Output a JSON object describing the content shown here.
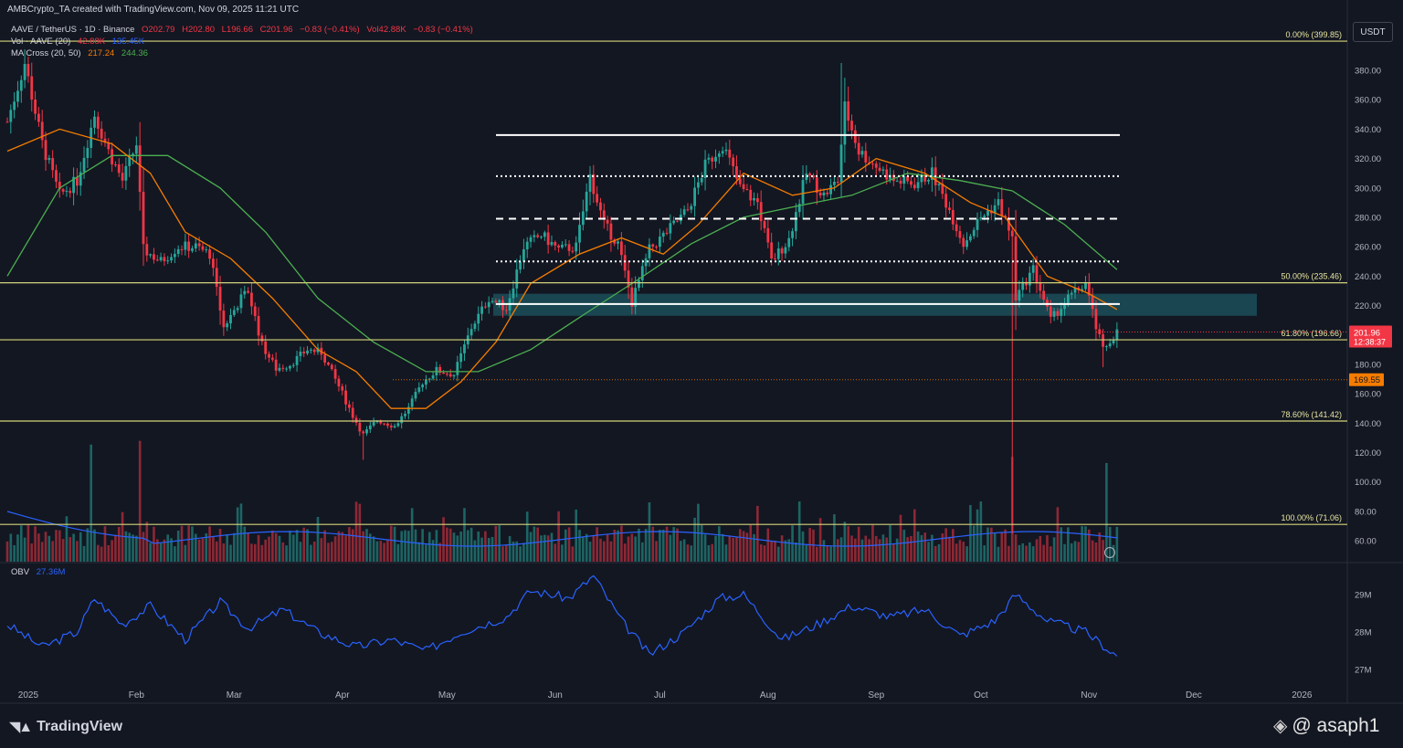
{
  "header": {
    "author_line": "AMBCrypto_TA created with TradingView.com, Nov 09, 2025 11:21 UTC"
  },
  "legend": {
    "symbol": "AAVE / TetherUS · 1D · Binance",
    "open": "O202.79",
    "high": "H202.80",
    "low": "L196.66",
    "close": "C201.96",
    "change": "−0.83 (−0.41%)",
    "volume": "Vol42.88K",
    "volume_change": "−0.83 (−0.41%)",
    "vol_label": "Vol · AAVE (20)",
    "vol_value": "42.88K",
    "vol_ma": "135.45K",
    "ma_label": "MA Cross (20, 50)",
    "ma_fast": "217.24",
    "ma_slow": "244.36",
    "obv_label": "OBV",
    "obv_value": "27.36M"
  },
  "currency_label": "USDT",
  "price_axis": {
    "ticks": [
      "380.00",
      "360.00",
      "340.00",
      "320.00",
      "300.00",
      "280.00",
      "260.00",
      "240.00",
      "220.00",
      "200.00",
      "180.00",
      "160.00",
      "140.00",
      "120.00",
      "100.00",
      "80.00",
      "60.00"
    ],
    "last_price": "201.96",
    "countdown": "12:38:37",
    "marker_price": "169.55"
  },
  "obv_axis": {
    "ticks": [
      "29M",
      "28M",
      "27M"
    ]
  },
  "time_axis": {
    "labels": [
      "2025",
      "Feb",
      "Mar",
      "Apr",
      "May",
      "Jun",
      "Jul",
      "Aug",
      "Sep",
      "Oct",
      "Nov",
      "Dec",
      "2026"
    ]
  },
  "fib_levels": [
    {
      "label": "0.00% (399.85)",
      "price": 399.85
    },
    {
      "label": "50.00% (235.46)",
      "price": 235.46
    },
    {
      "label": "61.80% (196.66)",
      "price": 196.66
    },
    {
      "label": "78.60% (141.42)",
      "price": 141.42
    },
    {
      "label": "100.00% (71.06)",
      "price": 71.06
    }
  ],
  "colors": {
    "up": "#26a69a",
    "down": "#f23645",
    "ma_fast": "#f57c00",
    "ma_slow": "#4caf50",
    "obv": "#2962ff",
    "fib": "#d4d47a",
    "zone": "#1f6d78"
  },
  "footer": {
    "brand": "TradingView",
    "watermark": "@ asaph1"
  },
  "chart_data": {
    "type": "candlestick",
    "title": "AAVE / TetherUS · 1D · Binance",
    "x_range": [
      "2024-12-26",
      "2026-01-14"
    ],
    "y_range": [
      52,
      410
    ],
    "range_lines": [
      336,
      308,
      279,
      250
    ],
    "support_line": 221,
    "demand_zone": [
      213,
      228
    ],
    "reference_price": 169.55,
    "price_path": [
      {
        "date": "2024-12-26",
        "price": 345
      },
      {
        "date": "2024-12-31",
        "price": 385
      },
      {
        "date": "2025-01-05",
        "price": 330
      },
      {
        "date": "2025-01-10",
        "price": 295
      },
      {
        "date": "2025-01-15",
        "price": 305
      },
      {
        "date": "2025-01-20",
        "price": 350
      },
      {
        "date": "2025-01-24",
        "price": 325
      },
      {
        "date": "2025-01-28",
        "price": 305
      },
      {
        "date": "2025-02-01",
        "price": 330
      },
      {
        "date": "2025-02-03",
        "price": 258
      },
      {
        "date": "2025-02-08",
        "price": 250
      },
      {
        "date": "2025-02-13",
        "price": 260
      },
      {
        "date": "2025-02-18",
        "price": 260
      },
      {
        "date": "2025-02-22",
        "price": 255
      },
      {
        "date": "2025-02-26",
        "price": 205
      },
      {
        "date": "2025-03-03",
        "price": 225
      },
      {
        "date": "2025-03-05",
        "price": 230
      },
      {
        "date": "2025-03-09",
        "price": 193
      },
      {
        "date": "2025-03-13",
        "price": 177
      },
      {
        "date": "2025-03-17",
        "price": 180
      },
      {
        "date": "2025-03-22",
        "price": 190
      },
      {
        "date": "2025-03-26",
        "price": 188
      },
      {
        "date": "2025-03-31",
        "price": 165
      },
      {
        "date": "2025-04-04",
        "price": 145
      },
      {
        "date": "2025-04-07",
        "price": 132
      },
      {
        "date": "2025-04-11",
        "price": 142
      },
      {
        "date": "2025-04-16",
        "price": 138
      },
      {
        "date": "2025-04-20",
        "price": 150
      },
      {
        "date": "2025-04-24",
        "price": 168
      },
      {
        "date": "2025-04-28",
        "price": 176
      },
      {
        "date": "2025-05-03",
        "price": 173
      },
      {
        "date": "2025-05-08",
        "price": 205
      },
      {
        "date": "2025-05-13",
        "price": 225
      },
      {
        "date": "2025-05-18",
        "price": 218
      },
      {
        "date": "2025-05-23",
        "price": 260
      },
      {
        "date": "2025-05-28",
        "price": 268
      },
      {
        "date": "2025-06-02",
        "price": 258
      },
      {
        "date": "2025-06-07",
        "price": 260
      },
      {
        "date": "2025-06-11",
        "price": 308
      },
      {
        "date": "2025-06-15",
        "price": 275
      },
      {
        "date": "2025-06-19",
        "price": 262
      },
      {
        "date": "2025-06-23",
        "price": 222
      },
      {
        "date": "2025-06-28",
        "price": 258
      },
      {
        "date": "2025-07-03",
        "price": 270
      },
      {
        "date": "2025-07-09",
        "price": 285
      },
      {
        "date": "2025-07-14",
        "price": 315
      },
      {
        "date": "2025-07-19",
        "price": 330
      },
      {
        "date": "2025-07-24",
        "price": 300
      },
      {
        "date": "2025-07-29",
        "price": 290
      },
      {
        "date": "2025-08-02",
        "price": 250
      },
      {
        "date": "2025-08-07",
        "price": 265
      },
      {
        "date": "2025-08-12",
        "price": 310
      },
      {
        "date": "2025-08-17",
        "price": 295
      },
      {
        "date": "2025-08-21",
        "price": 305
      },
      {
        "date": "2025-08-23",
        "price": 355
      },
      {
        "date": "2025-08-27",
        "price": 325
      },
      {
        "date": "2025-09-01",
        "price": 315
      },
      {
        "date": "2025-09-06",
        "price": 305
      },
      {
        "date": "2025-09-12",
        "price": 303
      },
      {
        "date": "2025-09-17",
        "price": 310
      },
      {
        "date": "2025-09-22",
        "price": 285
      },
      {
        "date": "2025-09-26",
        "price": 262
      },
      {
        "date": "2025-10-01",
        "price": 280
      },
      {
        "date": "2025-10-06",
        "price": 290
      },
      {
        "date": "2025-10-10",
        "price": 265
      },
      {
        "date": "2025-10-11",
        "price": 225
      },
      {
        "date": "2025-10-16",
        "price": 245
      },
      {
        "date": "2025-10-21",
        "price": 210
      },
      {
        "date": "2025-10-26",
        "price": 225
      },
      {
        "date": "2025-10-31",
        "price": 235
      },
      {
        "date": "2025-11-03",
        "price": 205
      },
      {
        "date": "2025-11-05",
        "price": 190
      },
      {
        "date": "2025-11-09",
        "price": 202
      }
    ],
    "extreme_wicks": [
      {
        "date": "2025-08-22",
        "high": 385
      },
      {
        "date": "2025-10-10",
        "low": 65
      },
      {
        "date": "2025-04-07",
        "low": 115
      },
      {
        "date": "2025-11-05",
        "low": 178
      }
    ],
    "ma_fast_path": [
      {
        "date": "2024-12-26",
        "price": 325
      },
      {
        "date": "2025-01-10",
        "price": 340
      },
      {
        "date": "2025-01-25",
        "price": 330
      },
      {
        "date": "2025-02-05",
        "price": 310
      },
      {
        "date": "2025-02-15",
        "price": 270
      },
      {
        "date": "2025-02-28",
        "price": 252
      },
      {
        "date": "2025-03-12",
        "price": 225
      },
      {
        "date": "2025-03-25",
        "price": 190
      },
      {
        "date": "2025-04-05",
        "price": 175
      },
      {
        "date": "2025-04-15",
        "price": 150
      },
      {
        "date": "2025-04-25",
        "price": 150
      },
      {
        "date": "2025-05-05",
        "price": 168
      },
      {
        "date": "2025-05-15",
        "price": 195
      },
      {
        "date": "2025-05-25",
        "price": 235
      },
      {
        "date": "2025-06-08",
        "price": 255
      },
      {
        "date": "2025-06-20",
        "price": 266
      },
      {
        "date": "2025-07-02",
        "price": 255
      },
      {
        "date": "2025-07-12",
        "price": 275
      },
      {
        "date": "2025-07-25",
        "price": 310
      },
      {
        "date": "2025-08-08",
        "price": 295
      },
      {
        "date": "2025-08-20",
        "price": 300
      },
      {
        "date": "2025-09-01",
        "price": 320
      },
      {
        "date": "2025-09-15",
        "price": 310
      },
      {
        "date": "2025-09-28",
        "price": 290
      },
      {
        "date": "2025-10-08",
        "price": 280
      },
      {
        "date": "2025-10-20",
        "price": 240
      },
      {
        "date": "2025-11-01",
        "price": 228
      },
      {
        "date": "2025-11-09",
        "price": 217.24
      }
    ],
    "ma_slow_path": [
      {
        "date": "2024-12-26",
        "price": 240
      },
      {
        "date": "2025-01-10",
        "price": 300
      },
      {
        "date": "2025-01-25",
        "price": 322
      },
      {
        "date": "2025-02-10",
        "price": 322
      },
      {
        "date": "2025-02-25",
        "price": 300
      },
      {
        "date": "2025-03-10",
        "price": 270
      },
      {
        "date": "2025-03-25",
        "price": 225
      },
      {
        "date": "2025-04-10",
        "price": 195
      },
      {
        "date": "2025-04-25",
        "price": 175
      },
      {
        "date": "2025-05-10",
        "price": 175
      },
      {
        "date": "2025-05-25",
        "price": 190
      },
      {
        "date": "2025-06-10",
        "price": 215
      },
      {
        "date": "2025-06-25",
        "price": 238
      },
      {
        "date": "2025-07-10",
        "price": 262
      },
      {
        "date": "2025-07-25",
        "price": 280
      },
      {
        "date": "2025-08-10",
        "price": 288
      },
      {
        "date": "2025-08-25",
        "price": 295
      },
      {
        "date": "2025-09-10",
        "price": 310
      },
      {
        "date": "2025-09-25",
        "price": 305
      },
      {
        "date": "2025-10-10",
        "price": 298
      },
      {
        "date": "2025-10-25",
        "price": 275
      },
      {
        "date": "2025-11-09",
        "price": 244.36
      }
    ],
    "obv_path": [
      {
        "date": "2024-12-26",
        "value": 28.2
      },
      {
        "date": "2025-01-05",
        "value": 27.6
      },
      {
        "date": "2025-01-15",
        "value": 28.0
      },
      {
        "date": "2025-01-20",
        "value": 28.9
      },
      {
        "date": "2025-01-28",
        "value": 28.2
      },
      {
        "date": "2025-02-05",
        "value": 28.7
      },
      {
        "date": "2025-02-15",
        "value": 27.8
      },
      {
        "date": "2025-02-25",
        "value": 28.8
      },
      {
        "date": "2025-03-05",
        "value": 28.1
      },
      {
        "date": "2025-03-15",
        "value": 28.6
      },
      {
        "date": "2025-03-25",
        "value": 28.0
      },
      {
        "date": "2025-04-05",
        "value": 27.6
      },
      {
        "date": "2025-04-15",
        "value": 27.8
      },
      {
        "date": "2025-04-25",
        "value": 27.5
      },
      {
        "date": "2025-05-05",
        "value": 28.0
      },
      {
        "date": "2025-05-18",
        "value": 28.4
      },
      {
        "date": "2025-05-25",
        "value": 29.1
      },
      {
        "date": "2025-06-05",
        "value": 28.9
      },
      {
        "date": "2025-06-12",
        "value": 29.5
      },
      {
        "date": "2025-06-20",
        "value": 28.3
      },
      {
        "date": "2025-06-28",
        "value": 27.4
      },
      {
        "date": "2025-07-08",
        "value": 28.0
      },
      {
        "date": "2025-07-18",
        "value": 28.9
      },
      {
        "date": "2025-07-25",
        "value": 29.0
      },
      {
        "date": "2025-08-05",
        "value": 27.8
      },
      {
        "date": "2025-08-15",
        "value": 28.2
      },
      {
        "date": "2025-08-25",
        "value": 28.7
      },
      {
        "date": "2025-09-05",
        "value": 28.4
      },
      {
        "date": "2025-09-15",
        "value": 28.6
      },
      {
        "date": "2025-09-25",
        "value": 27.9
      },
      {
        "date": "2025-10-05",
        "value": 28.3
      },
      {
        "date": "2025-10-11",
        "value": 29.0
      },
      {
        "date": "2025-10-20",
        "value": 28.3
      },
      {
        "date": "2025-10-31",
        "value": 28.0
      },
      {
        "date": "2025-11-09",
        "value": 27.36
      }
    ],
    "volume_spikes": [
      {
        "date": "2025-01-19",
        "level": 0.95
      },
      {
        "date": "2025-02-02",
        "level": 0.98
      },
      {
        "date": "2025-10-10",
        "level": 0.85
      },
      {
        "date": "2025-11-06",
        "level": 0.8
      }
    ]
  }
}
